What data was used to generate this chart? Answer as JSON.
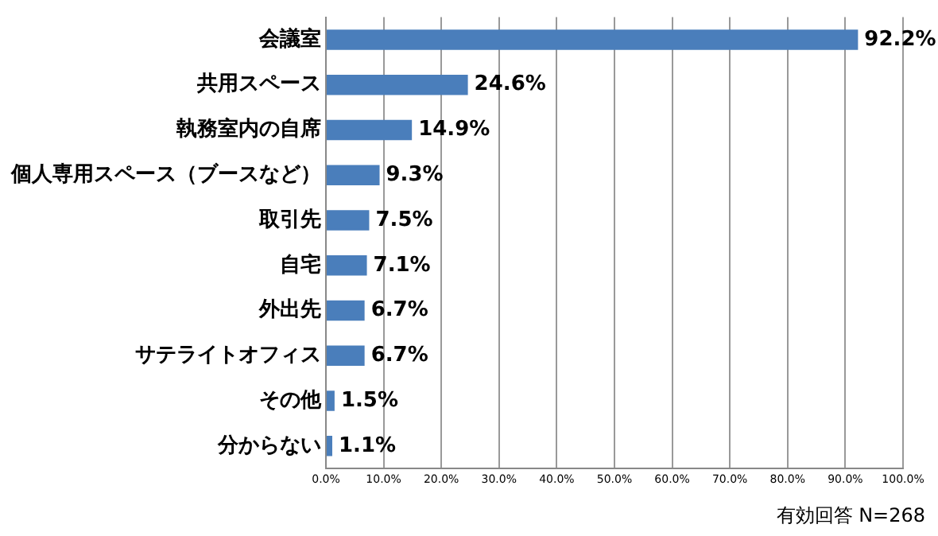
{
  "chart_data": {
    "type": "bar",
    "orientation": "horizontal",
    "categories": [
      "会議室",
      "共用スペース",
      "執務室内の自席",
      "個人専用スペース（ブースなど）",
      "取引先",
      "自宅",
      "外出先",
      "サテライトオフィス",
      "その他",
      "分からない"
    ],
    "values": [
      92.2,
      24.6,
      14.9,
      9.3,
      7.5,
      7.1,
      6.7,
      6.7,
      1.5,
      1.1
    ],
    "value_labels": [
      "92.2%",
      "24.6%",
      "14.9%",
      "9.3%",
      "7.5%",
      "7.1%",
      "6.7%",
      "6.7%",
      "1.5%",
      "1.1%"
    ],
    "color": "#4a7ebb",
    "xlim": [
      0,
      100
    ],
    "xticks": [
      {
        "value": 0,
        "label": "0.0%"
      },
      {
        "value": 10,
        "label": "10.0%"
      },
      {
        "value": 20,
        "label": "20.0%"
      },
      {
        "value": 30,
        "label": "30.0%"
      },
      {
        "value": 40,
        "label": "40.0%"
      },
      {
        "value": 50,
        "label": "50.0%"
      },
      {
        "value": 60,
        "label": "60.0%"
      },
      {
        "value": 70,
        "label": "70.0%"
      },
      {
        "value": 80,
        "label": "80.0%"
      },
      {
        "value": 90,
        "label": "90.0%"
      },
      {
        "value": 100,
        "label": "100.0%"
      }
    ],
    "grid": "x",
    "annotations": [
      "有効回答 N=268"
    ]
  }
}
